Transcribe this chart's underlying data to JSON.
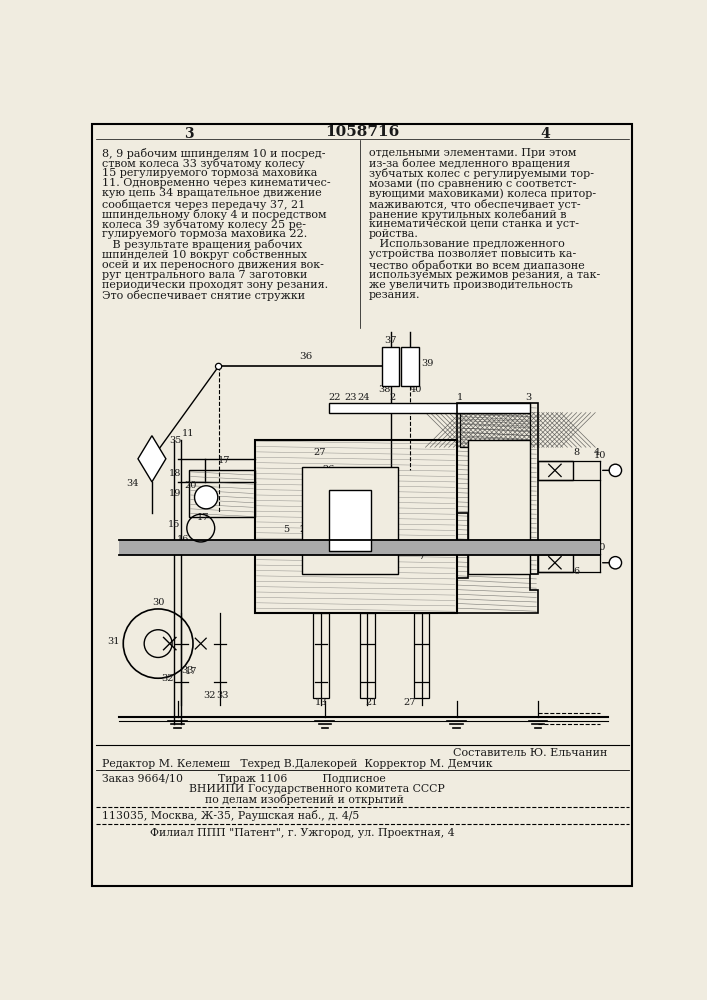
{
  "page_number_left": "3",
  "page_number_right": "4",
  "patent_number": "1058716",
  "background_color": "#f0ece0",
  "text_color": "#1a1a1a",
  "left_column_text": [
    "8, 9 рабочим шпинделям 10 и посред-",
    "ством колеса 33 зубчатому колесу",
    "15 регулируемого тормоза маховика",
    "11. Одновременно через кинематичес-",
    "кую цепь 34 вращательное движение",
    "сообщается через передачу 37, 21",
    "шпиндельному блоку 4 и посредством",
    "колеса 39 зубчатому колесу 25 ре-",
    "гулируемого тормоза маховика 22.",
    "   В результате вращения рабочих",
    "шпинделей 10 вокруг собственных",
    "осей и их переносного движения вок-",
    "руг центрального вала 7 заготовки",
    "периодически проходят зону резания.",
    "Это обеспечивает снятие стружки"
  ],
  "right_column_text": [
    "отдельными элементами. При этом",
    "из-за более медленного вращения",
    "зубчатых колес с регулируемыми тор-",
    "мозами (по сравнению с соответст-",
    "вующими маховиками) колеса притор-",
    "маживаются, что обеспечивает уст-",
    "ранение крутильных колебаний в",
    "кинематической цепи станка и уст-",
    "ройства.",
    "   Использование предложенного",
    "устройства позволяет повысить ка-",
    "чество обработки во всем диапазоне",
    "используемых режимов резания, а так-",
    "же увеличить производительность",
    "резания."
  ],
  "footer_lines": [
    "Составитель Ю. Ельчанин",
    "Редактор М. Келемеш   Техред В.Далекорей  Корректор М. Демчик",
    "Заказ 9664/10          Тираж 1106          Подписное",
    "ВНИИПИ Государственного комитета СССР",
    "по делам изобретений и открытий",
    "113035, Москва, Ж-35, Раушская наб., д. 4/5",
    "Филиал ППП \"Патент\", г. Ужгород, ул. Проектная, 4"
  ]
}
